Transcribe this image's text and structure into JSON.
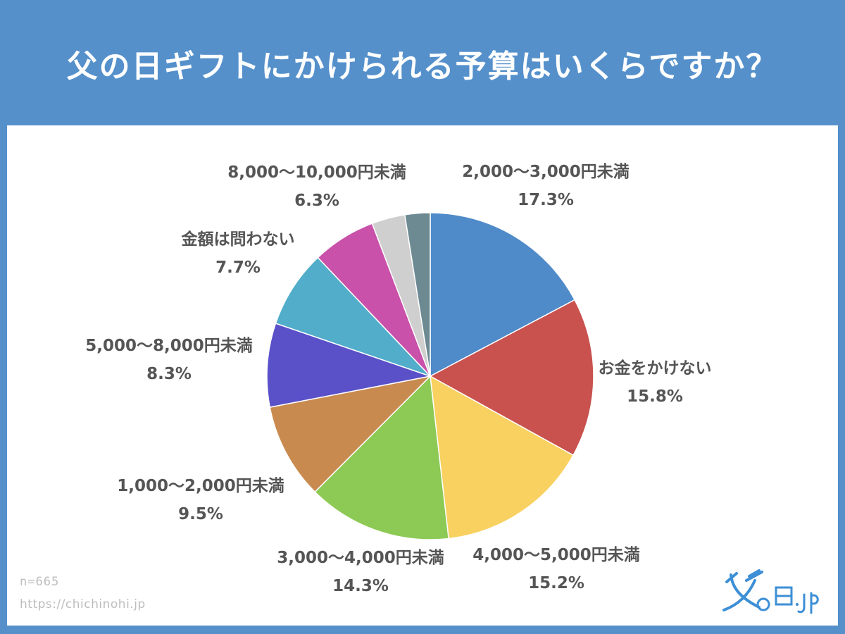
{
  "title": "父の日ギフトにかけられる予算はいくらですか？",
  "footer": {
    "n": "n=665",
    "url": "https://chichinohi.jp"
  },
  "logo": {
    "text": "父の日.jp"
  },
  "chart_data": {
    "type": "pie",
    "title": "父の日ギフトにかけられる予算はいくらですか？",
    "slices": [
      {
        "label": "2,000〜3,000円未満",
        "value": 17.3,
        "pct": "17.3%",
        "color": "#4f8ac9"
      },
      {
        "label": "お金をかけない",
        "value": 15.8,
        "pct": "15.8%",
        "color": "#c9524f"
      },
      {
        "label": "4,000〜5,000円未満",
        "value": 15.2,
        "pct": "15.2%",
        "color": "#f8d160"
      },
      {
        "label": "3,000〜4,000円未満",
        "value": 14.3,
        "pct": "14.3%",
        "color": "#8dc955"
      },
      {
        "label": "1,000〜2,000円未満",
        "value": 9.5,
        "pct": "9.5%",
        "color": "#c98a4f"
      },
      {
        "label": "5,000〜8,000円未満",
        "value": 8.3,
        "pct": "8.3%",
        "color": "#5a51c9"
      },
      {
        "label": "金額は問わない",
        "value": 7.7,
        "pct": "7.7%",
        "color": "#51adc9"
      },
      {
        "label": "8,000〜10,000円未満",
        "value": 6.3,
        "pct": "6.3%",
        "color": "#c951aa"
      },
      {
        "label": "",
        "value": 3.3,
        "pct": "",
        "color": "#cfcfcf"
      },
      {
        "label": "",
        "value": 2.5,
        "pct": "",
        "color": "#6d8a93"
      }
    ]
  }
}
